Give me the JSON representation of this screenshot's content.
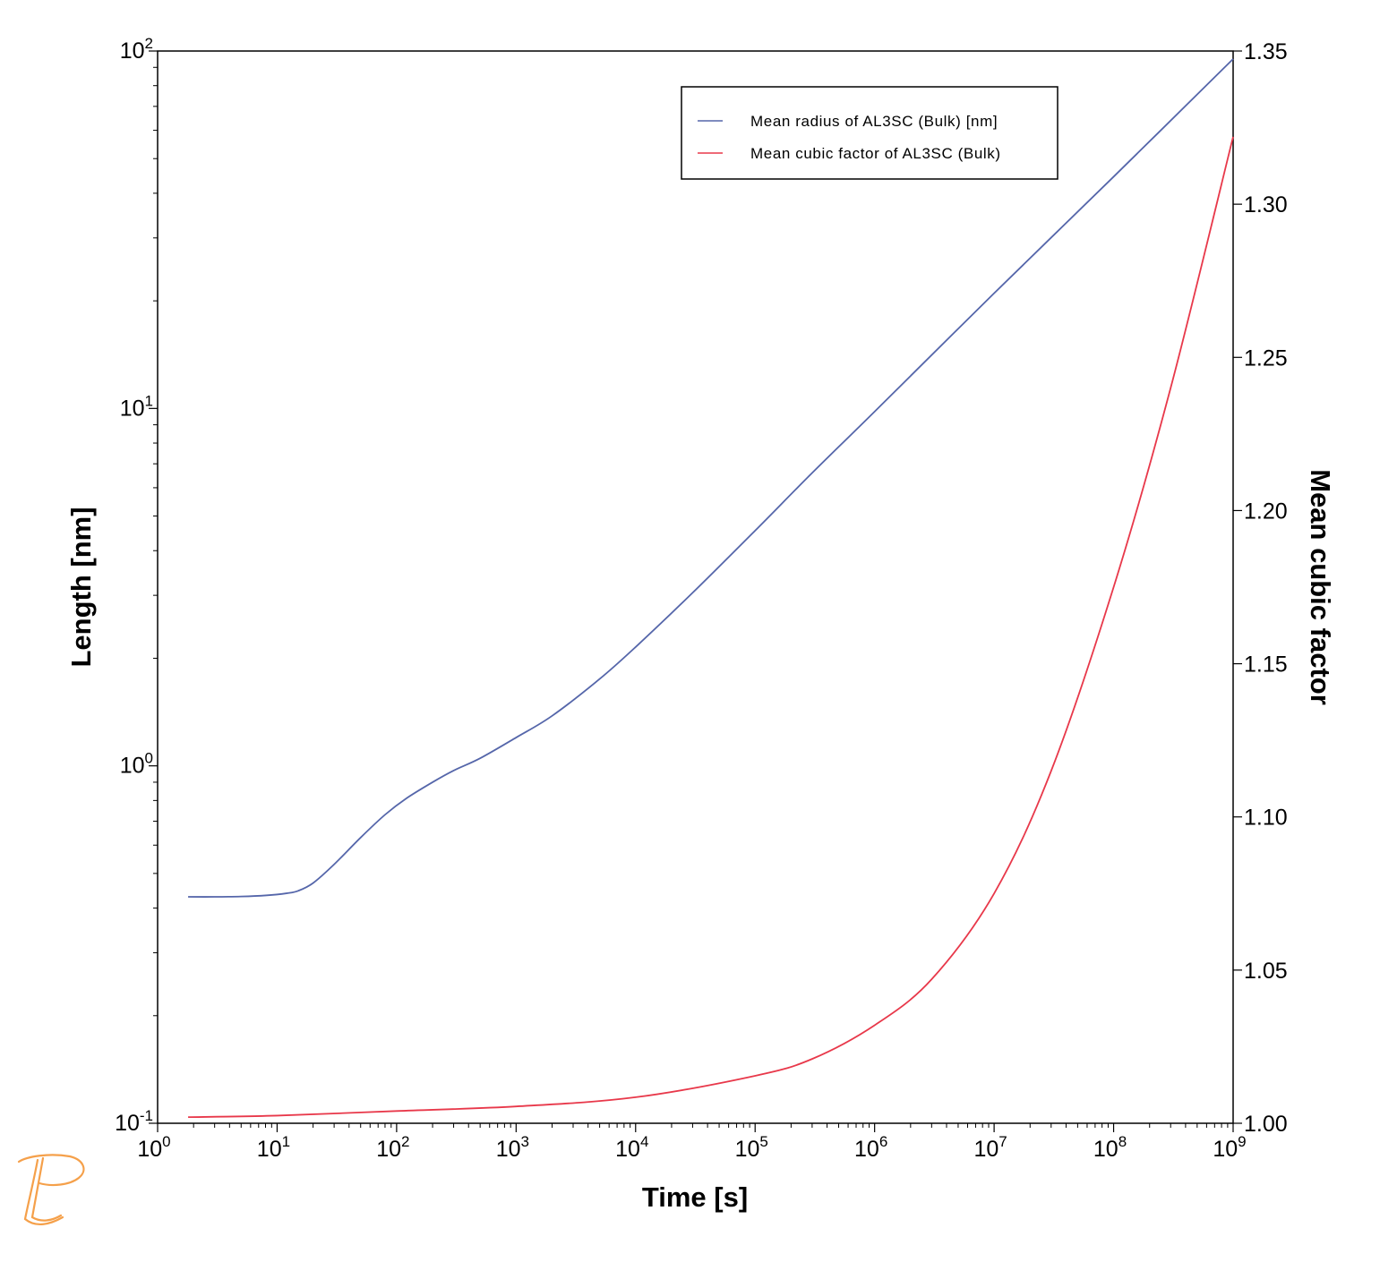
{
  "colors": {
    "series_blue": "#5566aa",
    "series_red": "#e8384a",
    "logo_orange": "#f5a04a",
    "axis": "#000000"
  },
  "logo_icon": "thermo-calc-logo-icon",
  "chart_data": {
    "type": "line",
    "xlabel": "Time [s]",
    "ylabel_left": "Length [nm]",
    "ylabel_right": "Mean cubic factor",
    "x_scale": "log",
    "y_left_scale": "log",
    "y_right_scale": "linear",
    "xlim": [
      1,
      1000000000
    ],
    "ylim_left": [
      0.1,
      100
    ],
    "ylim_right": [
      1.0,
      1.35
    ],
    "grid": false,
    "legend_position": "top-right",
    "x_ticks": [
      {
        "base": "10",
        "exp": "0"
      },
      {
        "base": "10",
        "exp": "1"
      },
      {
        "base": "10",
        "exp": "2"
      },
      {
        "base": "10",
        "exp": "3"
      },
      {
        "base": "10",
        "exp": "4"
      },
      {
        "base": "10",
        "exp": "5"
      },
      {
        "base": "10",
        "exp": "6"
      },
      {
        "base": "10",
        "exp": "7"
      },
      {
        "base": "10",
        "exp": "8"
      },
      {
        "base": "10",
        "exp": "9"
      }
    ],
    "y_left_ticks": [
      {
        "base": "10",
        "exp": "-1"
      },
      {
        "base": "10",
        "exp": "0"
      },
      {
        "base": "10",
        "exp": "1"
      },
      {
        "base": "10",
        "exp": "2"
      }
    ],
    "y_right_ticks": [
      "1.00",
      "1.05",
      "1.10",
      "1.15",
      "1.20",
      "1.25",
      "1.30",
      "1.35"
    ],
    "series": [
      {
        "name": "Mean radius of AL3SC (Bulk) [nm]",
        "axis": "left",
        "color": "#5566aa",
        "x": [
          1.8,
          3,
          5,
          8,
          12,
          15,
          20,
          30,
          50,
          80,
          120,
          200,
          300,
          500,
          1000,
          2000,
          5000,
          10000,
          30000,
          100000,
          300000,
          1000000,
          10000000,
          100000000,
          1000000000
        ],
        "y": [
          0.43,
          0.43,
          0.431,
          0.434,
          0.44,
          0.447,
          0.47,
          0.53,
          0.63,
          0.73,
          0.81,
          0.9,
          0.97,
          1.05,
          1.2,
          1.38,
          1.75,
          2.15,
          3.05,
          4.55,
          6.6,
          9.8,
          21.0,
          44.5,
          95.0
        ]
      },
      {
        "name": "Mean cubic factor of AL3SC (Bulk)",
        "axis": "right",
        "color": "#e8384a",
        "x": [
          1.8,
          10,
          100,
          1000,
          10000,
          100000,
          300000,
          1000000,
          3000000,
          10000000,
          30000000,
          100000000,
          300000000,
          1000000000
        ],
        "y": [
          1.002,
          1.0025,
          1.004,
          1.0055,
          1.0085,
          1.0155,
          1.021,
          1.032,
          1.047,
          1.075,
          1.115,
          1.175,
          1.24,
          1.322
        ]
      }
    ]
  }
}
